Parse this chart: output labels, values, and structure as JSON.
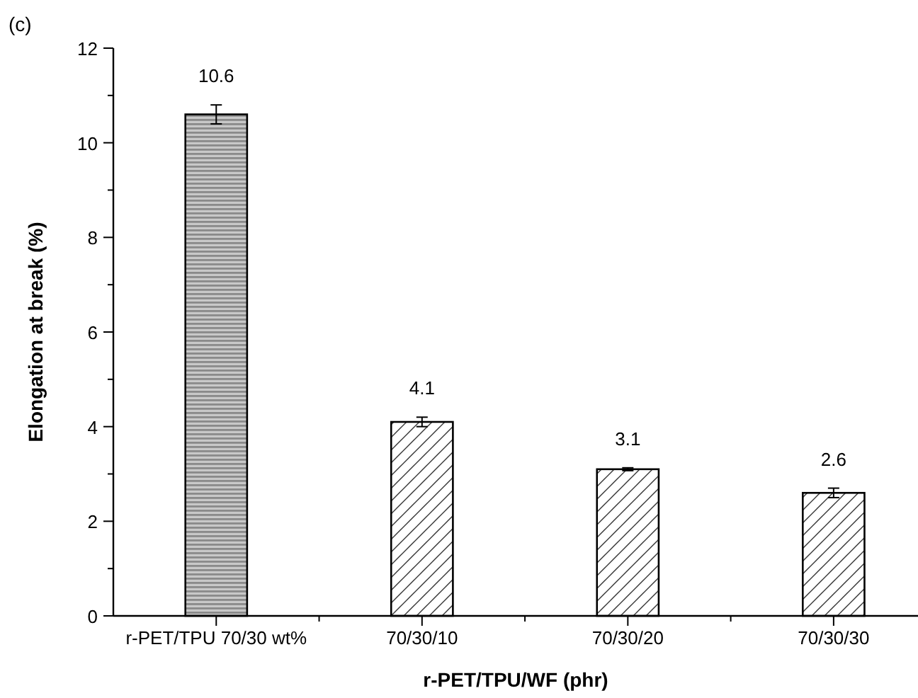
{
  "chart_data": {
    "type": "bar",
    "xlabel": "r-PET/TPU/WF (phr)",
    "ylabel": "Elongation at break (%)",
    "annotations": [
      "(c)"
    ],
    "categories": [
      "r-PET/TPU 70/30 wt%",
      "70/30/10",
      "70/30/20",
      "70/30/30"
    ],
    "values": [
      10.6,
      4.1,
      3.1,
      2.6
    ],
    "errors": [
      0.2,
      0.1,
      0.03,
      0.1
    ],
    "colors": [
      "#c8c8c8",
      "#ffffff",
      "#ffffff",
      "#ffffff"
    ],
    "data_labels": true,
    "ylim": [
      0,
      12
    ],
    "yticks": [
      0,
      {
        "value": 1,
        "label": null
      },
      2,
      {
        "value": 3,
        "label": null
      },
      4,
      {
        "value": 5,
        "label": null
      },
      6,
      {
        "value": 7,
        "label": null
      },
      8,
      {
        "value": 9,
        "label": null
      },
      10,
      {
        "value": 11,
        "label": null
      },
      12
    ],
    "grid": false
  }
}
